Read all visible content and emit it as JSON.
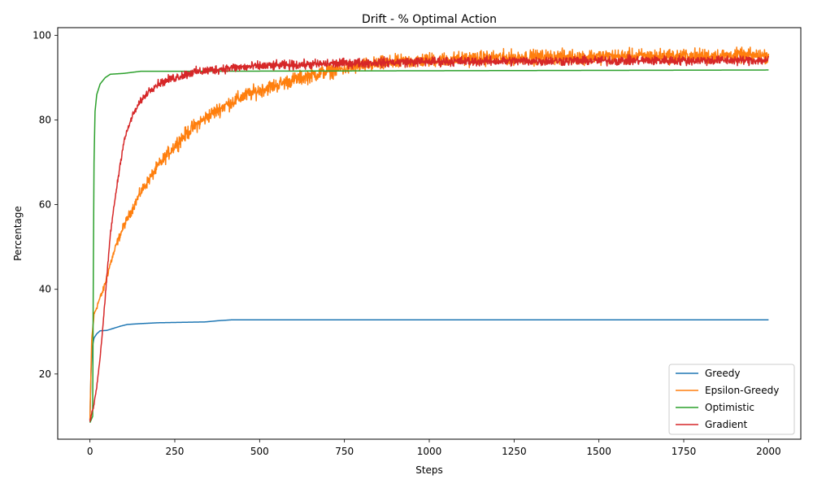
{
  "chart_data": {
    "type": "line",
    "title": "Drift - % Optimal Action",
    "xlabel": "Steps",
    "ylabel": "Percentage",
    "xlim": [
      -95,
      2095
    ],
    "ylim": [
      4.6,
      101.8
    ],
    "xticks": [
      0,
      250,
      500,
      750,
      1000,
      1250,
      1500,
      1750,
      2000
    ],
    "yticks": [
      20,
      40,
      60,
      80,
      100
    ],
    "grid": false,
    "legend_position": "lower-right",
    "series": [
      {
        "name": "Greedy",
        "color": "#1f77b4",
        "noise": 0,
        "points": [
          [
            0,
            9
          ],
          [
            3,
            20
          ],
          [
            6,
            26
          ],
          [
            12,
            28.5
          ],
          [
            20,
            29.5
          ],
          [
            30,
            30.2
          ],
          [
            50,
            30.3
          ],
          [
            70,
            30.8
          ],
          [
            90,
            31.3
          ],
          [
            110,
            31.7
          ],
          [
            150,
            31.9
          ],
          [
            200,
            32.1
          ],
          [
            340,
            32.3
          ],
          [
            380,
            32.6
          ],
          [
            420,
            32.8
          ],
          [
            2000,
            32.8
          ]
        ]
      },
      {
        "name": "Epsilon-Greedy",
        "color": "#ff7f0e",
        "noise": 1.4,
        "points": [
          [
            0,
            9
          ],
          [
            5,
            28
          ],
          [
            12,
            34
          ],
          [
            25,
            37
          ],
          [
            40,
            40
          ],
          [
            60,
            46
          ],
          [
            80,
            51
          ],
          [
            100,
            55
          ],
          [
            125,
            59
          ],
          [
            150,
            63
          ],
          [
            200,
            69
          ],
          [
            250,
            74
          ],
          [
            300,
            78
          ],
          [
            350,
            81
          ],
          [
            400,
            83.5
          ],
          [
            450,
            85.5
          ],
          [
            500,
            87
          ],
          [
            600,
            89.5
          ],
          [
            700,
            91.5
          ],
          [
            800,
            92.8
          ],
          [
            900,
            93.6
          ],
          [
            1000,
            94.2
          ],
          [
            1250,
            94.8
          ],
          [
            1500,
            95
          ],
          [
            1750,
            95.1
          ],
          [
            2000,
            95.2
          ]
        ]
      },
      {
        "name": "Optimistic",
        "color": "#2ca02c",
        "noise": 0,
        "points": [
          [
            0,
            8.5
          ],
          [
            8,
            10
          ],
          [
            10,
            45
          ],
          [
            12,
            70
          ],
          [
            15,
            82
          ],
          [
            20,
            86
          ],
          [
            30,
            88.5
          ],
          [
            45,
            90
          ],
          [
            60,
            90.8
          ],
          [
            100,
            91
          ],
          [
            150,
            91.5
          ],
          [
            300,
            91.5
          ],
          [
            2000,
            91.8
          ]
        ]
      },
      {
        "name": "Gradient",
        "color": "#d62728",
        "noise": 0.9,
        "points": [
          [
            0,
            9
          ],
          [
            10,
            12
          ],
          [
            20,
            17
          ],
          [
            30,
            24
          ],
          [
            40,
            33
          ],
          [
            50,
            43
          ],
          [
            60,
            53
          ],
          [
            75,
            62
          ],
          [
            90,
            70
          ],
          [
            100,
            75
          ],
          [
            125,
            81
          ],
          [
            150,
            84.5
          ],
          [
            175,
            87
          ],
          [
            200,
            88.5
          ],
          [
            250,
            90
          ],
          [
            300,
            91.2
          ],
          [
            400,
            92.2
          ],
          [
            500,
            92.7
          ],
          [
            750,
            93.4
          ],
          [
            1000,
            93.8
          ],
          [
            1500,
            94
          ],
          [
            2000,
            94.1
          ]
        ]
      }
    ]
  }
}
